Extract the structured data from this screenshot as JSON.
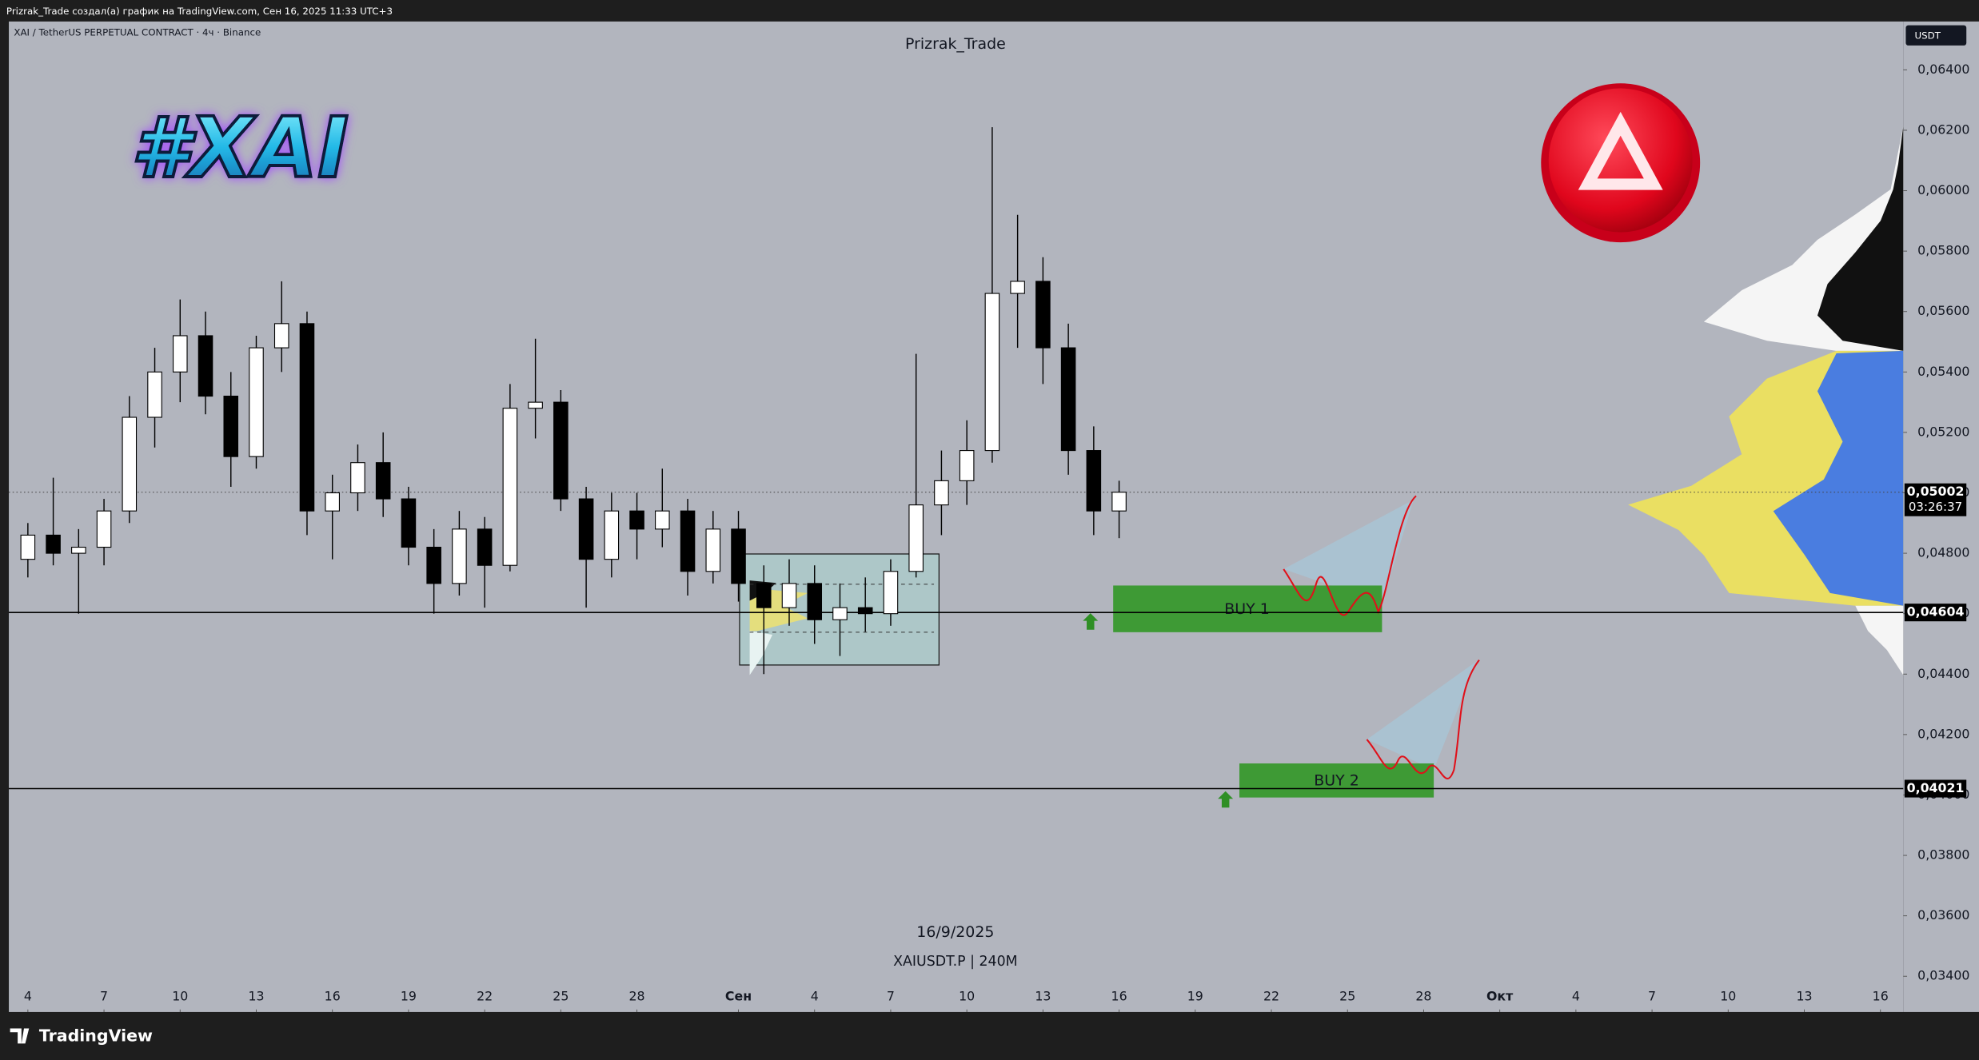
{
  "header": "Prizrak_Trade создал(а) график на TradingView.com, Сен 16, 2025 11:33 UTC+3",
  "footer_brand": "TradingView",
  "chart_data": {
    "type": "candlestick",
    "title": "Prizrak_Trade",
    "symbol": "XAI / TetherUS PERPETUAL CONTRACT · 4ч · Binance",
    "currency": "USDT",
    "logo_text": "#XAI",
    "watermark_date": "16/9/2025",
    "watermark_symbol": "XAIUSDT.P | 240M",
    "up_color": "#ffffff",
    "down_color": "#000000",
    "x": [
      4,
      5,
      6,
      7,
      8,
      9,
      10,
      11,
      12,
      13,
      14,
      15,
      16,
      17,
      18,
      19,
      20,
      21,
      22,
      23,
      24,
      25,
      26,
      27,
      28,
      29,
      30,
      31,
      32,
      33,
      34,
      35,
      36,
      37,
      38,
      39,
      40,
      41,
      42,
      43,
      44,
      45,
      46,
      47
    ],
    "open": [
      0.0478,
      0.0486,
      0.048,
      0.0482,
      0.0494,
      0.0525,
      0.054,
      0.0552,
      0.0532,
      0.0512,
      0.0548,
      0.0556,
      0.0494,
      0.05,
      0.051,
      0.0498,
      0.0482,
      0.047,
      0.0488,
      0.0476,
      0.0528,
      0.053,
      0.0498,
      0.0478,
      0.0494,
      0.0488,
      0.0494,
      0.0474,
      0.0488,
      0.047,
      0.0462,
      0.047,
      0.0458,
      0.0462,
      0.046,
      0.0474,
      0.0496,
      0.0504,
      0.0514,
      0.0566,
      0.057,
      0.0548,
      0.0514,
      0.0494
    ],
    "high": [
      0.049,
      0.0505,
      0.0488,
      0.0498,
      0.0532,
      0.0548,
      0.0564,
      0.056,
      0.054,
      0.0552,
      0.057,
      0.056,
      0.0506,
      0.0516,
      0.052,
      0.0502,
      0.0488,
      0.0494,
      0.0492,
      0.0536,
      0.0551,
      0.0534,
      0.0502,
      0.05,
      0.05,
      0.0508,
      0.0498,
      0.0494,
      0.0494,
      0.0476,
      0.0478,
      0.0476,
      0.047,
      0.0472,
      0.0478,
      0.0546,
      0.0514,
      0.0524,
      0.0621,
      0.0592,
      0.0578,
      0.0556,
      0.0522,
      0.0504
    ],
    "low": [
      0.0472,
      0.0476,
      0.046,
      0.0476,
      0.049,
      0.0515,
      0.053,
      0.0526,
      0.0502,
      0.0508,
      0.054,
      0.0486,
      0.0478,
      0.0494,
      0.0492,
      0.0476,
      0.046,
      0.0466,
      0.0462,
      0.0474,
      0.0518,
      0.0494,
      0.0462,
      0.0472,
      0.0478,
      0.0482,
      0.0466,
      0.047,
      0.0464,
      0.044,
      0.0456,
      0.045,
      0.0446,
      0.0454,
      0.0456,
      0.0472,
      0.0486,
      0.0496,
      0.051,
      0.0548,
      0.0536,
      0.0506,
      0.0486,
      0.0485
    ],
    "close": [
      0.0486,
      0.048,
      0.0482,
      0.0494,
      0.0525,
      0.054,
      0.0552,
      0.0532,
      0.0512,
      0.0548,
      0.0556,
      0.0494,
      0.05,
      0.051,
      0.0498,
      0.0482,
      0.047,
      0.0488,
      0.0476,
      0.0528,
      0.053,
      0.0498,
      0.0478,
      0.0494,
      0.0488,
      0.0494,
      0.0474,
      0.0488,
      0.047,
      0.0462,
      0.047,
      0.0458,
      0.0462,
      0.046,
      0.0474,
      0.0496,
      0.0504,
      0.0514,
      0.0566,
      0.057,
      0.0548,
      0.0514,
      0.0494,
      0.05002
    ],
    "xlim": [
      3.25,
      77.9
    ],
    "xticks": [
      4,
      7,
      10,
      13,
      16,
      19,
      22,
      25,
      28,
      {
        "value": 32,
        "label": "Сен"
      },
      {
        "value": 35,
        "label": "4"
      },
      {
        "value": 38,
        "label": "7"
      },
      {
        "value": 41,
        "label": "10"
      },
      {
        "value": 44,
        "label": "13"
      },
      {
        "value": 47,
        "label": "16"
      },
      {
        "value": 50,
        "label": "19"
      },
      {
        "value": 53,
        "label": "22"
      },
      {
        "value": 56,
        "label": "25"
      },
      {
        "value": 59,
        "label": "28"
      },
      {
        "value": 62,
        "label": "Окт"
      },
      {
        "value": 65,
        "label": "4"
      },
      {
        "value": 68,
        "label": "7"
      },
      {
        "value": 71,
        "label": "10"
      },
      {
        "value": 74,
        "label": "13"
      },
      {
        "value": 77,
        "label": "16"
      }
    ],
    "ylim": [
      0.0329,
      0.0656
    ],
    "yticks": [
      {
        "value": 0.034,
        "label": "0,03400"
      },
      {
        "value": 0.036,
        "label": "0,03600"
      },
      {
        "value": 0.038,
        "label": "0,03800"
      },
      {
        "value": 0.04,
        "label": "0,04000"
      },
      {
        "value": 0.042,
        "label": "0,04200"
      },
      {
        "value": 0.044,
        "label": "0,04400"
      },
      {
        "value": 0.046,
        "label": "0,04600"
      },
      {
        "value": 0.048,
        "label": "0,04800"
      },
      {
        "value": 0.05,
        "label": "0,05000"
      },
      {
        "value": 0.052,
        "label": "0,05200"
      },
      {
        "value": 0.054,
        "label": "0,05400"
      },
      {
        "value": 0.056,
        "label": "0,05600"
      },
      {
        "value": 0.058,
        "label": "0,05800"
      },
      {
        "value": 0.06,
        "label": "0,06000"
      },
      {
        "value": 0.062,
        "label": "0,06200"
      },
      {
        "value": 0.064,
        "label": "0,06400"
      }
    ],
    "price_lines": [
      {
        "value": 0.05002,
        "label": "0,05002",
        "countdown": "03:26:37",
        "style": "dotted"
      },
      {
        "value": 0.04604,
        "label": "0,04604",
        "style": "solid"
      },
      {
        "value": 0.04021,
        "label": "0,04021",
        "style": "solid"
      }
    ],
    "zones": [
      {
        "label": "BUY 1"
      },
      {
        "label": "BUY 2"
      }
    ]
  }
}
